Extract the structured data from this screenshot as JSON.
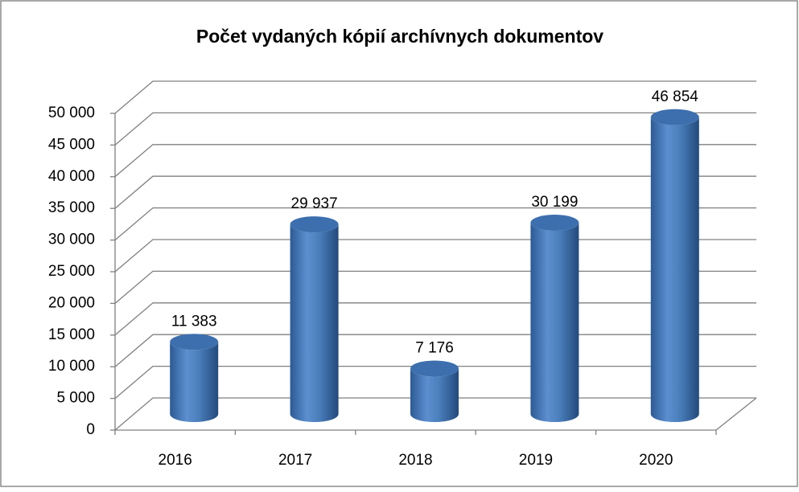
{
  "chart_data": {
    "type": "bar3d",
    "title": "Počet vydaných kópií archívnych dokumentov",
    "categories": [
      "2016",
      "2017",
      "2018",
      "2019",
      "2020"
    ],
    "values": [
      11383,
      29937,
      7176,
      30199,
      46854
    ],
    "value_labels": [
      "11 383",
      "29 937",
      "7 176",
      "30 199",
      "46 854"
    ],
    "color": "#4a7ebb",
    "ylim": [
      0,
      50000
    ],
    "yticks": [
      0,
      {
        "value": 5000,
        "label": "5 000"
      },
      {
        "value": 10000,
        "label": "10 000"
      },
      {
        "value": 15000,
        "label": "15 000"
      },
      {
        "value": 20000,
        "label": "20 000"
      },
      {
        "value": 25000,
        "label": "25 000"
      },
      {
        "value": 30000,
        "label": "30 000"
      },
      {
        "value": 35000,
        "label": "35 000"
      },
      {
        "value": 40000,
        "label": "40 000"
      },
      {
        "value": 45000,
        "label": "45 000"
      },
      {
        "value": 50000,
        "label": "50 000"
      }
    ],
    "grid": true
  }
}
